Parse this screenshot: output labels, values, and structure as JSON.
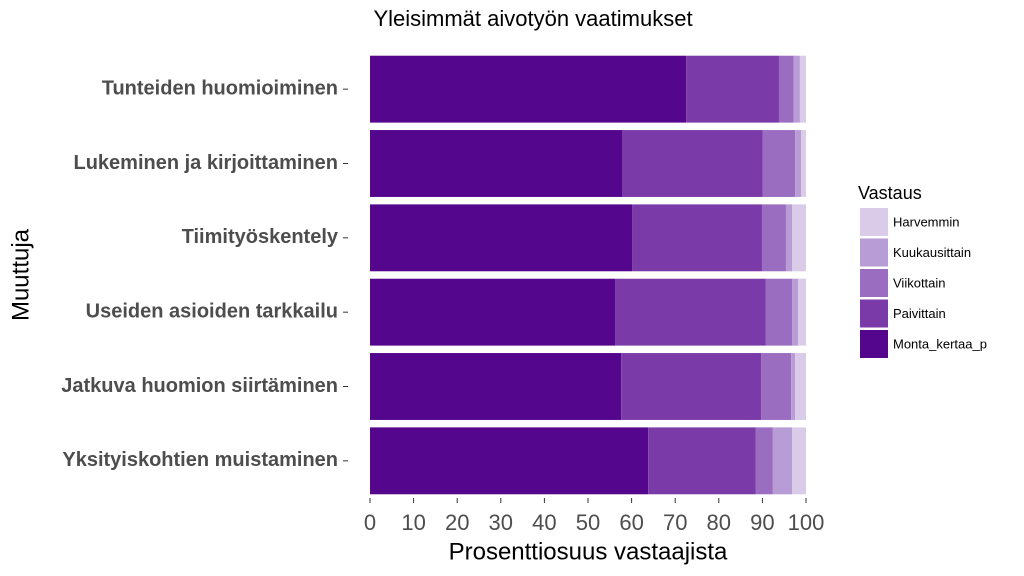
{
  "chart_data": {
    "type": "stacked-barh",
    "title": "Yleisimmät aivotyön vaatimukset",
    "x_label": "Prosenttiosuus vastaajista",
    "y_label": "Muuttuja",
    "legend_title": "Vastaus",
    "legend": "right",
    "grid": false,
    "categories": [
      "Tunteiden huomioiminen",
      "Lukeminen ja kirjoittaminen",
      "Tiimityöskentely",
      "Useiden asioiden tarkkailu",
      "Jatkuva huomion siirtäminen",
      "Yksityiskohtien muistaminen"
    ],
    "series": [
      {
        "name": "Harvemmin",
        "color": "#dacbe8",
        "values": [
          1.4,
          1.1,
          3.2,
          1.8,
          2.5,
          3.2
        ]
      },
      {
        "name": "Kuukausittain",
        "color": "#b89cd6",
        "values": [
          1.4,
          1.4,
          1.4,
          1.4,
          0.9,
          4.4
        ]
      },
      {
        "name": "Viikottain",
        "color": "#9a6dc0",
        "values": [
          3.4,
          7.4,
          5.5,
          6.0,
          6.9,
          3.9
        ]
      },
      {
        "name": "Paivittain",
        "color": "#7a3ba8",
        "values": [
          21.3,
          32.3,
          29.8,
          34.6,
          32.1,
          24.7
        ]
      },
      {
        "name": "Monta_kertaa_p",
        "color": "#54068c",
        "values": [
          72.5,
          57.8,
          60.1,
          56.2,
          57.6,
          63.8
        ]
      }
    ],
    "xlim": [
      0,
      100
    ],
    "xticks": [
      0,
      10,
      20,
      30,
      40,
      50,
      60,
      70,
      80,
      90,
      100
    ]
  }
}
